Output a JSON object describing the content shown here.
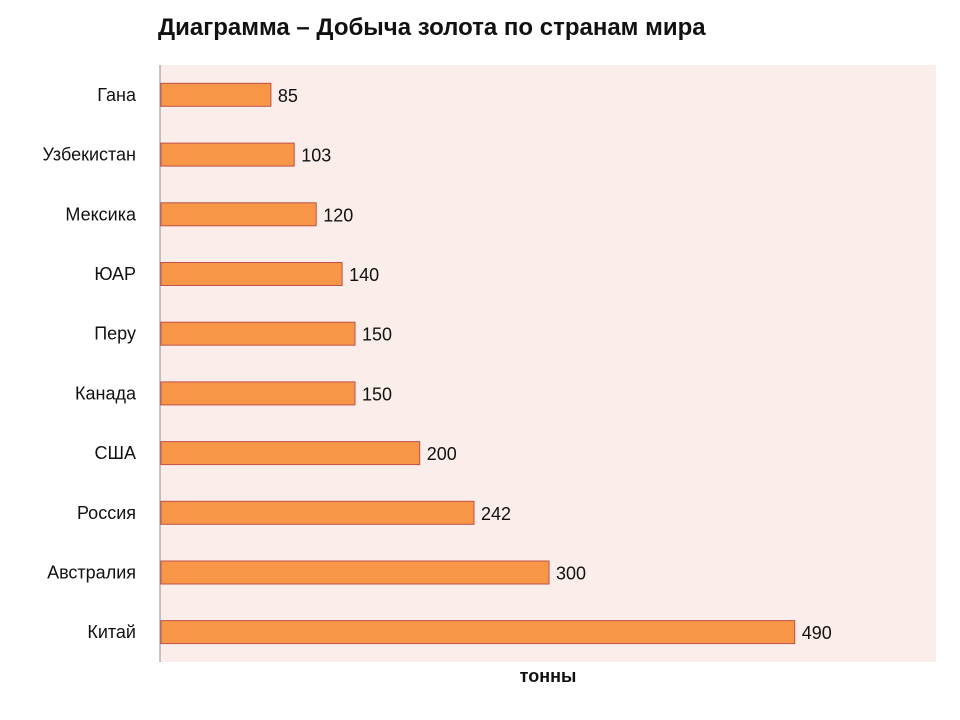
{
  "chart_data": {
    "type": "bar",
    "orientation": "horizontal",
    "title": "Диаграмма – Добыча золота по странам мира",
    "xlabel": "тонны",
    "ylabel": "",
    "categories": [
      "Гана",
      "Узбекистан",
      "Мексика",
      "ЮАР",
      "Перу",
      "Канада",
      "США",
      "Россия",
      "Австралия",
      "Китай"
    ],
    "values": [
      85,
      103,
      120,
      140,
      150,
      150,
      200,
      242,
      300,
      490
    ],
    "xlim": [
      0,
      600
    ],
    "data_labels": true,
    "grid": false,
    "legend": "none",
    "colors": {
      "bar_fill": "#F79646",
      "bar_stroke": "#C0504D",
      "plot_background": "#FBEEEA",
      "axis_line": "#8C8C8C"
    }
  }
}
